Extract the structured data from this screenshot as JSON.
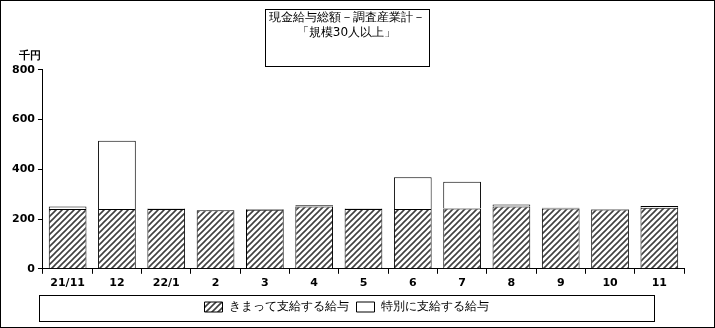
{
  "chart_data": {
    "type": "bar",
    "title": "現金給与総額－調査産業計－\n「規模30人以上」",
    "ylabel": "千円",
    "categories": [
      "21/11",
      "12",
      "22/1",
      "2",
      "3",
      "4",
      "5",
      "6",
      "7",
      "8",
      "9",
      "10",
      "11"
    ],
    "series": [
      {
        "name": "きまって支給する給与",
        "color": "#404040",
        "values": [
          240,
          240,
          240,
          235,
          237,
          250,
          240,
          240,
          242,
          250,
          242,
          238,
          245
        ]
      },
      {
        "name": "特別に支給する給与",
        "color": "#ffffff",
        "values": [
          10,
          275,
          2,
          0,
          3,
          5,
          2,
          128,
          108,
          8,
          3,
          2,
          7
        ]
      }
    ],
    "stacked": true,
    "ylim": [
      0,
      800
    ],
    "yticks": [
      0,
      200,
      400,
      600,
      800
    ],
    "grid": false,
    "legend": "bottom"
  }
}
